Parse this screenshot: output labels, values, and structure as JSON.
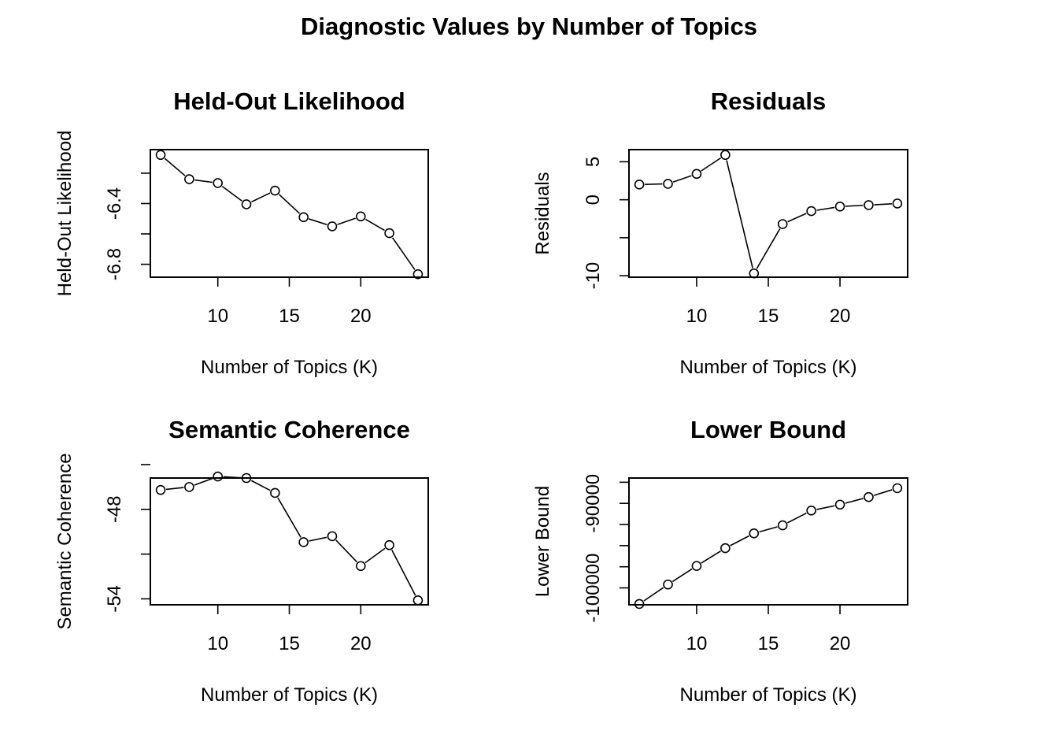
{
  "figure_title": "Diagnostic Values by Number of Topics",
  "chart_data": [
    {
      "type": "line",
      "title": "Held-Out Likelihood",
      "xlabel": "Number of Topics (K)",
      "ylabel": "Held-Out Likelihood",
      "xlim": [
        5.28,
        24.72
      ],
      "ylim": [
        -6.885,
        -6.045
      ],
      "xticks": [
        10,
        15,
        20
      ],
      "yticks": [
        -6.8,
        -6.6,
        -6.4,
        -6.2
      ],
      "yticklabels": [
        "-6.8",
        "",
        "-6.4",
        ""
      ],
      "x": [
        6,
        8,
        10,
        12,
        14,
        16,
        18,
        20,
        22,
        24
      ],
      "y": [
        -6.08,
        -6.24,
        -6.265,
        -6.405,
        -6.315,
        -6.49,
        -6.55,
        -6.485,
        -6.595,
        -6.865
      ]
    },
    {
      "type": "line",
      "title": "Residuals",
      "xlabel": "Number of Topics (K)",
      "ylabel": "Residuals",
      "xlim": [
        5.28,
        24.72
      ],
      "ylim": [
        -10.2,
        6.6
      ],
      "xticks": [
        10,
        15,
        20
      ],
      "yticks": [
        -10,
        -5,
        0,
        5
      ],
      "yticklabels": [
        "-10",
        "",
        "0",
        "5"
      ],
      "x": [
        6,
        8,
        10,
        12,
        14,
        16,
        18,
        20,
        22,
        24
      ],
      "y": [
        2.0,
        2.1,
        3.4,
        5.9,
        -9.7,
        -3.2,
        -1.5,
        -0.9,
        -0.7,
        -0.5
      ]
    },
    {
      "type": "line",
      "title": "Semantic Coherence",
      "xlabel": "Number of Topics (K)",
      "ylabel": "Semantic Coherence",
      "xlim": [
        5.28,
        24.72
      ],
      "ylim": [
        -54.4,
        -45.9
      ],
      "xticks": [
        10,
        15,
        20
      ],
      "yticks": [
        -54,
        -51,
        -48,
        -45
      ],
      "yticklabels": [
        "-54",
        "",
        "-48",
        ""
      ],
      "x": [
        6,
        8,
        10,
        12,
        14,
        16,
        18,
        20,
        22,
        24
      ],
      "y": [
        -46.7,
        -46.5,
        -45.8,
        -45.9,
        -46.9,
        -50.2,
        -49.8,
        -51.8,
        -50.4,
        -54.1
      ]
    },
    {
      "type": "line",
      "title": "Lower Bound",
      "xlabel": "Number of Topics (K)",
      "ylabel": "Lower Bound",
      "xlim": [
        5.28,
        24.72
      ],
      "ylim": [
        -102000,
        -87000
      ],
      "xticks": [
        10,
        15,
        20
      ],
      "yticks": [
        -100000,
        -97500,
        -95000,
        -92500,
        -90000,
        -87500
      ],
      "yticklabels": [
        "-100000",
        "",
        "",
        "",
        "-90000",
        ""
      ],
      "x": [
        6,
        8,
        10,
        12,
        14,
        16,
        18,
        20,
        22,
        24
      ],
      "y": [
        -101900,
        -99600,
        -97400,
        -95300,
        -93550,
        -92600,
        -90850,
        -90150,
        -89250,
        -88200
      ]
    }
  ]
}
